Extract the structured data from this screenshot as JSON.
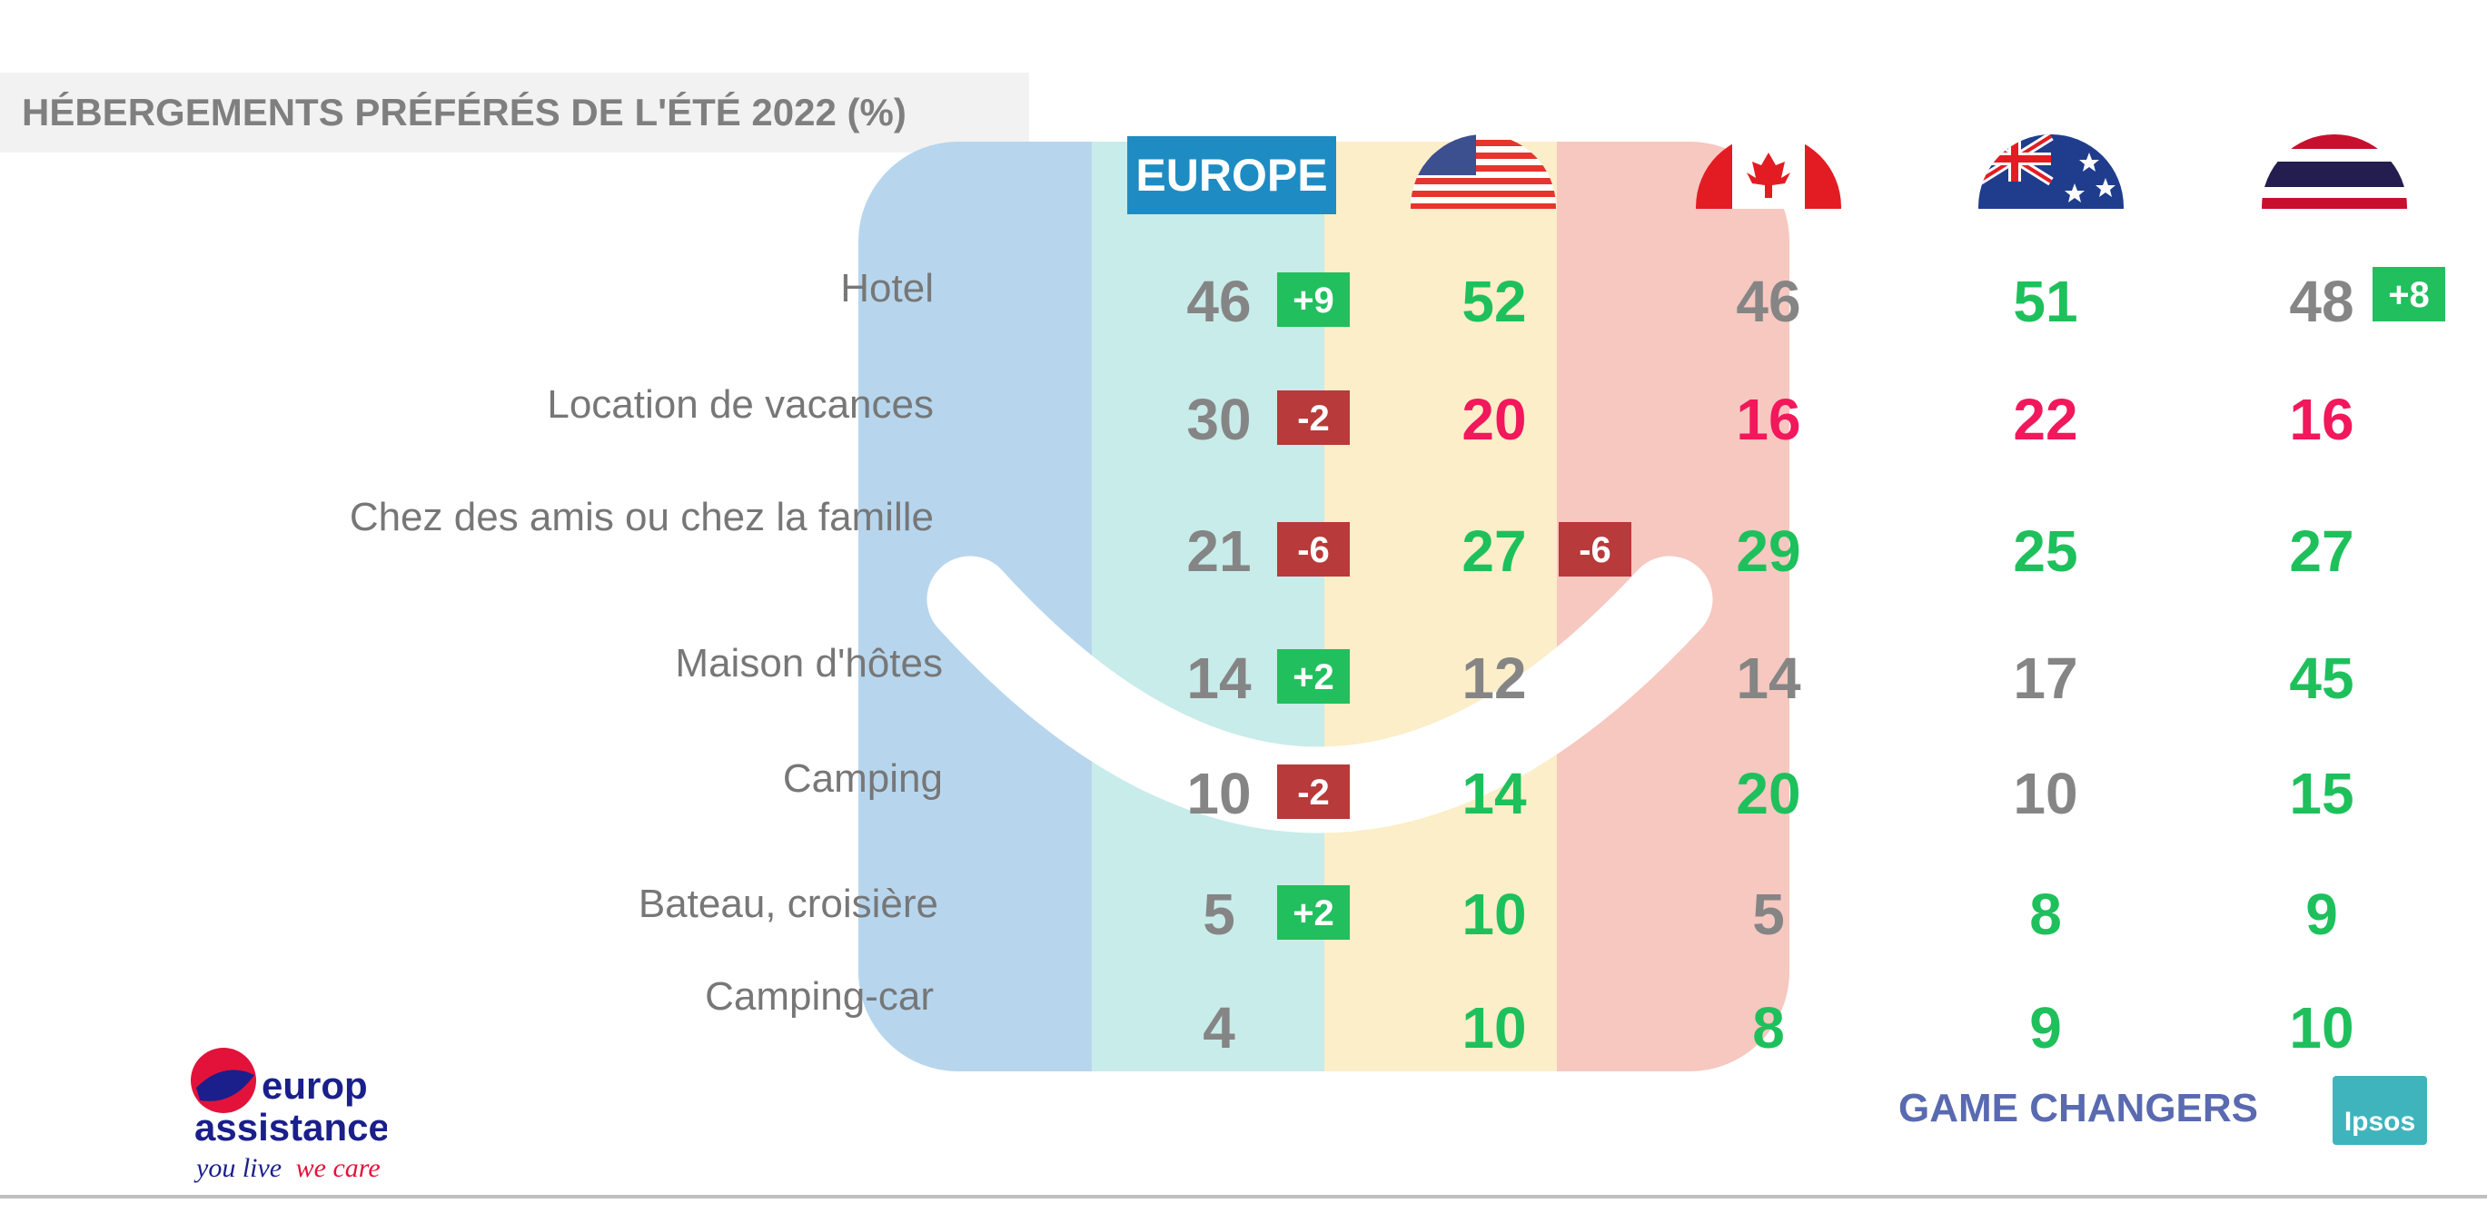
{
  "title": "HÉBERGEMENTS PRÉFÉRÉS DE L'ÉTÉ 2022 (%)",
  "europe_label": "EUROPE",
  "colors": {
    "green": "#1ec05c",
    "red": "#f1185c",
    "grey": "#858585",
    "badge_green": "#22bf5e",
    "badge_red": "#b83a3a"
  },
  "chart_data": {
    "type": "table",
    "title": "HÉBERGEMENTS PRÉFÉRÉS DE L'ÉTÉ 2022 (%)",
    "columns": [
      "EUROPE",
      "usa-flag-icon",
      "canada-flag-icon",
      "australia-flag-icon",
      "thailand-flag-icon"
    ],
    "categories": [
      "Hotel",
      "Location de vacances",
      "Chez des amis ou chez la famille",
      "Maison d'hôtes",
      "Camping",
      "Bateau, croisière",
      "Camping-car"
    ],
    "series": [
      {
        "values": [
          46,
          30,
          21,
          14,
          10,
          5,
          4
        ],
        "colors": [
          "grey",
          "grey",
          "grey",
          "grey",
          "grey",
          "grey",
          "grey"
        ]
      },
      {
        "values": [
          52,
          20,
          27,
          12,
          14,
          10,
          10
        ],
        "colors": [
          "green",
          "red",
          "green",
          "grey",
          "green",
          "green",
          "green"
        ]
      },
      {
        "values": [
          46,
          16,
          29,
          14,
          20,
          5,
          8
        ],
        "colors": [
          "grey",
          "red",
          "green",
          "grey",
          "green",
          "grey",
          "green"
        ]
      },
      {
        "values": [
          51,
          22,
          25,
          17,
          10,
          8,
          9
        ],
        "colors": [
          "green",
          "red",
          "green",
          "grey",
          "grey",
          "green",
          "green"
        ]
      },
      {
        "values": [
          48,
          16,
          27,
          45,
          15,
          9,
          10
        ],
        "colors": [
          "grey",
          "red",
          "green",
          "green",
          "green",
          "green",
          "green"
        ]
      }
    ],
    "badges": [
      {
        "row": 0,
        "col": 0,
        "text": "+9",
        "kind": "up"
      },
      {
        "row": 1,
        "col": 0,
        "text": "-2",
        "kind": "down"
      },
      {
        "row": 2,
        "col": 0,
        "text": "-6",
        "kind": "down"
      },
      {
        "row": 2,
        "col": 1,
        "text": "-6",
        "kind": "down"
      },
      {
        "row": 3,
        "col": 0,
        "text": "+2",
        "kind": "up"
      },
      {
        "row": 4,
        "col": 0,
        "text": "-2",
        "kind": "down"
      },
      {
        "row": 5,
        "col": 0,
        "text": "+2",
        "kind": "up"
      },
      {
        "row": 0,
        "col": 4,
        "text": "+8",
        "kind": "up"
      }
    ]
  },
  "footer": {
    "brand_line1": "europ",
    "brand_line2": "assistance",
    "tagline_a": "you live",
    "tagline_b": "we care",
    "game_changers": "GAME CHANGERS",
    "ipsos": "Ipsos"
  }
}
